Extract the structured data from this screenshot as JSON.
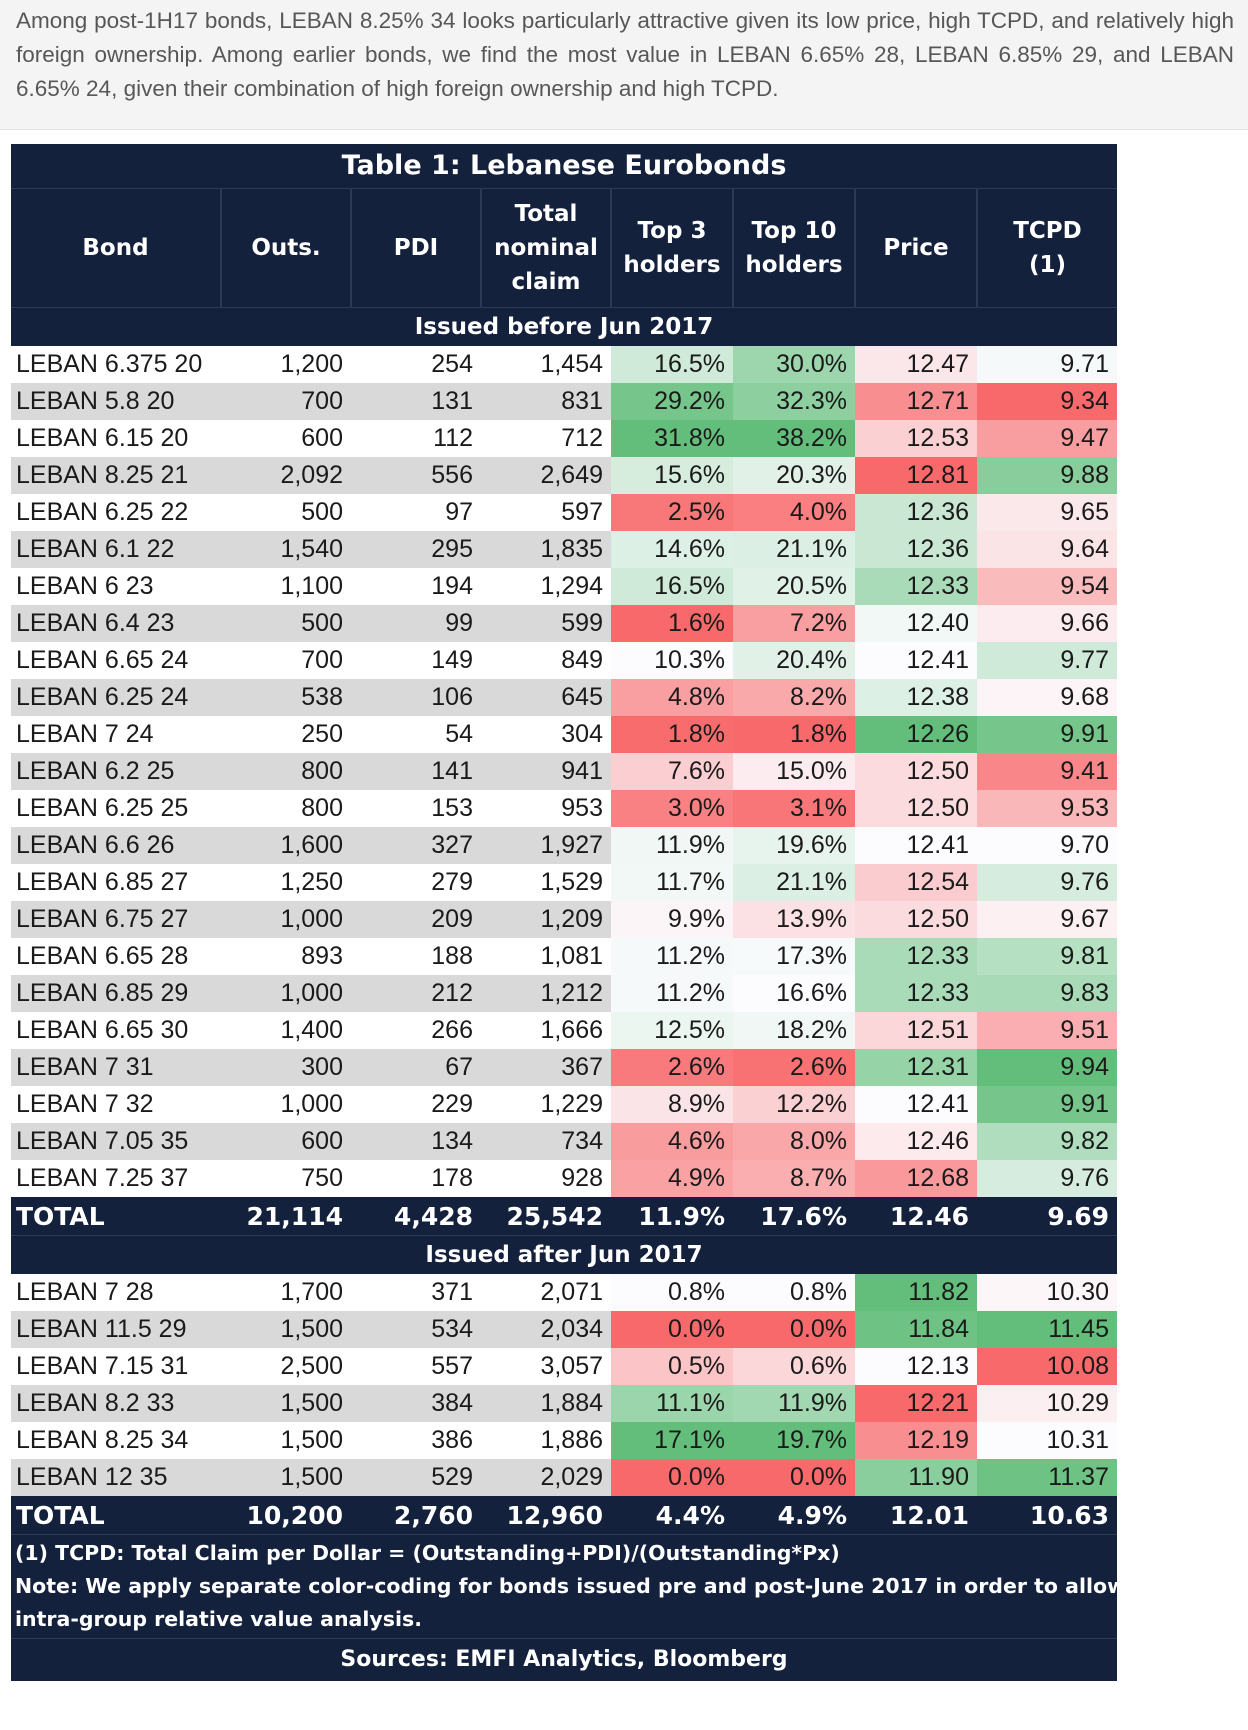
{
  "intro_text": "Among post-1H17 bonds, LEBAN 8.25% 34 looks particularly attractive given its low price, high TCPD, and relatively high foreign ownership. Among earlier bonds, we find the most value in LEBAN 6.65% 28, LEBAN 6.85% 29, and LEBAN 6.65% 24, given their combination of high foreign ownership and high TCPD.",
  "table": {
    "title": "Table 1: Lebanese Eurobonds",
    "headers": [
      "Bond",
      "Outs.",
      "PDI",
      "Total\nnominal\nclaim",
      "Top 3\nholders",
      "Top 10\nholders",
      "Price",
      "TCPD\n(1)"
    ],
    "colors": {
      "header_bg": "#14213d",
      "strong_green": "#63be7b",
      "strong_red": "#f8696b",
      "neutral": "#fcfcff",
      "alt_row": "#d9d9d9"
    },
    "sections": [
      {
        "label": "Issued before Jun 2017",
        "rows": [
          [
            "LEBAN 6.375 20",
            "1,200",
            "254",
            "1,454",
            "16.5%",
            "30.0%",
            "12.47",
            "9.71"
          ],
          [
            "LEBAN 5.8 20",
            "700",
            "131",
            "831",
            "29.2%",
            "32.3%",
            "12.71",
            "9.34"
          ],
          [
            "LEBAN 6.15 20",
            "600",
            "112",
            "712",
            "31.8%",
            "38.2%",
            "12.53",
            "9.47"
          ],
          [
            "LEBAN 8.25 21",
            "2,092",
            "556",
            "2,649",
            "15.6%",
            "20.3%",
            "12.81",
            "9.88"
          ],
          [
            "LEBAN 6.25 22",
            "500",
            "97",
            "597",
            "2.5%",
            "4.0%",
            "12.36",
            "9.65"
          ],
          [
            "LEBAN 6.1 22",
            "1,540",
            "295",
            "1,835",
            "14.6%",
            "21.1%",
            "12.36",
            "9.64"
          ],
          [
            "LEBAN 6 23",
            "1,100",
            "194",
            "1,294",
            "16.5%",
            "20.5%",
            "12.33",
            "9.54"
          ],
          [
            "LEBAN 6.4 23",
            "500",
            "99",
            "599",
            "1.6%",
            "7.2%",
            "12.40",
            "9.66"
          ],
          [
            "LEBAN 6.65 24",
            "700",
            "149",
            "849",
            "10.3%",
            "20.4%",
            "12.41",
            "9.77"
          ],
          [
            "LEBAN 6.25 24",
            "538",
            "106",
            "645",
            "4.8%",
            "8.2%",
            "12.38",
            "9.68"
          ],
          [
            "LEBAN 7 24",
            "250",
            "54",
            "304",
            "1.8%",
            "1.8%",
            "12.26",
            "9.91"
          ],
          [
            "LEBAN 6.2 25",
            "800",
            "141",
            "941",
            "7.6%",
            "15.0%",
            "12.50",
            "9.41"
          ],
          [
            "LEBAN 6.25 25",
            "800",
            "153",
            "953",
            "3.0%",
            "3.1%",
            "12.50",
            "9.53"
          ],
          [
            "LEBAN 6.6 26",
            "1,600",
            "327",
            "1,927",
            "11.9%",
            "19.6%",
            "12.41",
            "9.70"
          ],
          [
            "LEBAN 6.85 27",
            "1,250",
            "279",
            "1,529",
            "11.7%",
            "21.1%",
            "12.54",
            "9.76"
          ],
          [
            "LEBAN 6.75 27",
            "1,000",
            "209",
            "1,209",
            "9.9%",
            "13.9%",
            "12.50",
            "9.67"
          ],
          [
            "LEBAN 6.65 28",
            "893",
            "188",
            "1,081",
            "11.2%",
            "17.3%",
            "12.33",
            "9.81"
          ],
          [
            "LEBAN 6.85 29",
            "1,000",
            "212",
            "1,212",
            "11.2%",
            "16.6%",
            "12.33",
            "9.83"
          ],
          [
            "LEBAN 6.65 30",
            "1,400",
            "266",
            "1,666",
            "12.5%",
            "18.2%",
            "12.51",
            "9.51"
          ],
          [
            "LEBAN 7 31",
            "300",
            "67",
            "367",
            "2.6%",
            "2.6%",
            "12.31",
            "9.94"
          ],
          [
            "LEBAN 7 32",
            "1,000",
            "229",
            "1,229",
            "8.9%",
            "12.2%",
            "12.41",
            "9.91"
          ],
          [
            "LEBAN 7.05 35",
            "600",
            "134",
            "734",
            "4.6%",
            "8.0%",
            "12.46",
            "9.82"
          ],
          [
            "LEBAN 7.25 37",
            "750",
            "178",
            "928",
            "4.9%",
            "8.7%",
            "12.68",
            "9.76"
          ]
        ],
        "total": [
          "TOTAL",
          "21,114",
          "4,428",
          "25,542",
          "11.9%",
          "17.6%",
          "12.46",
          "9.69"
        ]
      },
      {
        "label": "Issued after Jun 2017",
        "rows": [
          [
            "LEBAN 7 28",
            "1,700",
            "371",
            "2,071",
            "0.8%",
            "0.8%",
            "11.82",
            "10.30"
          ],
          [
            "LEBAN 11.5 29",
            "1,500",
            "534",
            "2,034",
            "0.0%",
            "0.0%",
            "11.84",
            "11.45"
          ],
          [
            "LEBAN 7.15 31",
            "2,500",
            "557",
            "3,057",
            "0.5%",
            "0.6%",
            "12.13",
            "10.08"
          ],
          [
            "LEBAN 8.2 33",
            "1,500",
            "384",
            "1,884",
            "11.1%",
            "11.9%",
            "12.21",
            "10.29"
          ],
          [
            "LEBAN 8.25 34",
            "1,500",
            "386",
            "1,886",
            "17.1%",
            "19.7%",
            "12.19",
            "10.31"
          ],
          [
            "LEBAN 12 35",
            "1,500",
            "529",
            "2,029",
            "0.0%",
            "0.0%",
            "11.90",
            "11.37"
          ]
        ],
        "total": [
          "TOTAL",
          "10,200",
          "2,760",
          "12,960",
          "4.4%",
          "4.9%",
          "12.01",
          "10.63"
        ]
      }
    ],
    "notes": [
      "(1) TCPD: Total Claim per Dollar = (Outstanding+PDI)/(Outstanding*Px)",
      "Note: We apply separate color-coding for bonds issued pre and post-June 2017 in order to allow",
      "intra-group relative value analysis."
    ],
    "sources": "Sources: EMFI Analytics, Bloomberg"
  }
}
